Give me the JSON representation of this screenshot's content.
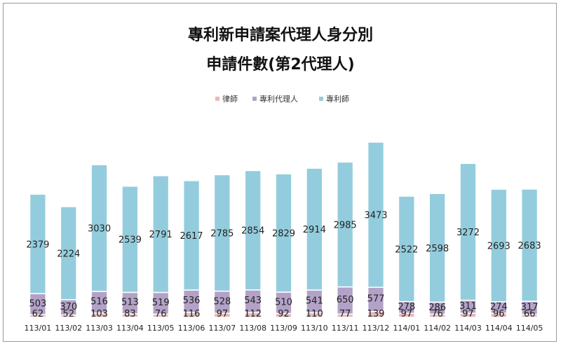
{
  "chart_data": {
    "type": "bar",
    "stacked": true,
    "title": "專利新申請案代理人身分別",
    "subtitle": "申請件數(第2代理人)",
    "xlabel": "",
    "ylabel": "",
    "categories": [
      "113/01",
      "113/02",
      "113/03",
      "113/04",
      "113/05",
      "113/06",
      "113/07",
      "113/08",
      "113/09",
      "113/10",
      "113/11",
      "113/12",
      "114/01",
      "114/02",
      "114/03",
      "114/04",
      "114/05"
    ],
    "series": [
      {
        "name": "律師",
        "color": "#e6b9b8",
        "values": [
          62,
          52,
          103,
          83,
          76,
          116,
          97,
          112,
          92,
          110,
          77,
          139,
          97,
          76,
          97,
          96,
          66
        ]
      },
      {
        "name": "專利代理人",
        "color": "#b3a2c7",
        "values": [
          503,
          370,
          516,
          513,
          519,
          536,
          528,
          543,
          510,
          541,
          650,
          577,
          278,
          286,
          311,
          274,
          317
        ]
      },
      {
        "name": "專利師",
        "color": "#93cddd",
        "values": [
          2379,
          2224,
          3030,
          2539,
          2791,
          2617,
          2785,
          2854,
          2829,
          2914,
          2985,
          3473,
          2522,
          2598,
          3272,
          2693,
          2683
        ]
      }
    ],
    "legend_position": "top",
    "grid": false
  }
}
